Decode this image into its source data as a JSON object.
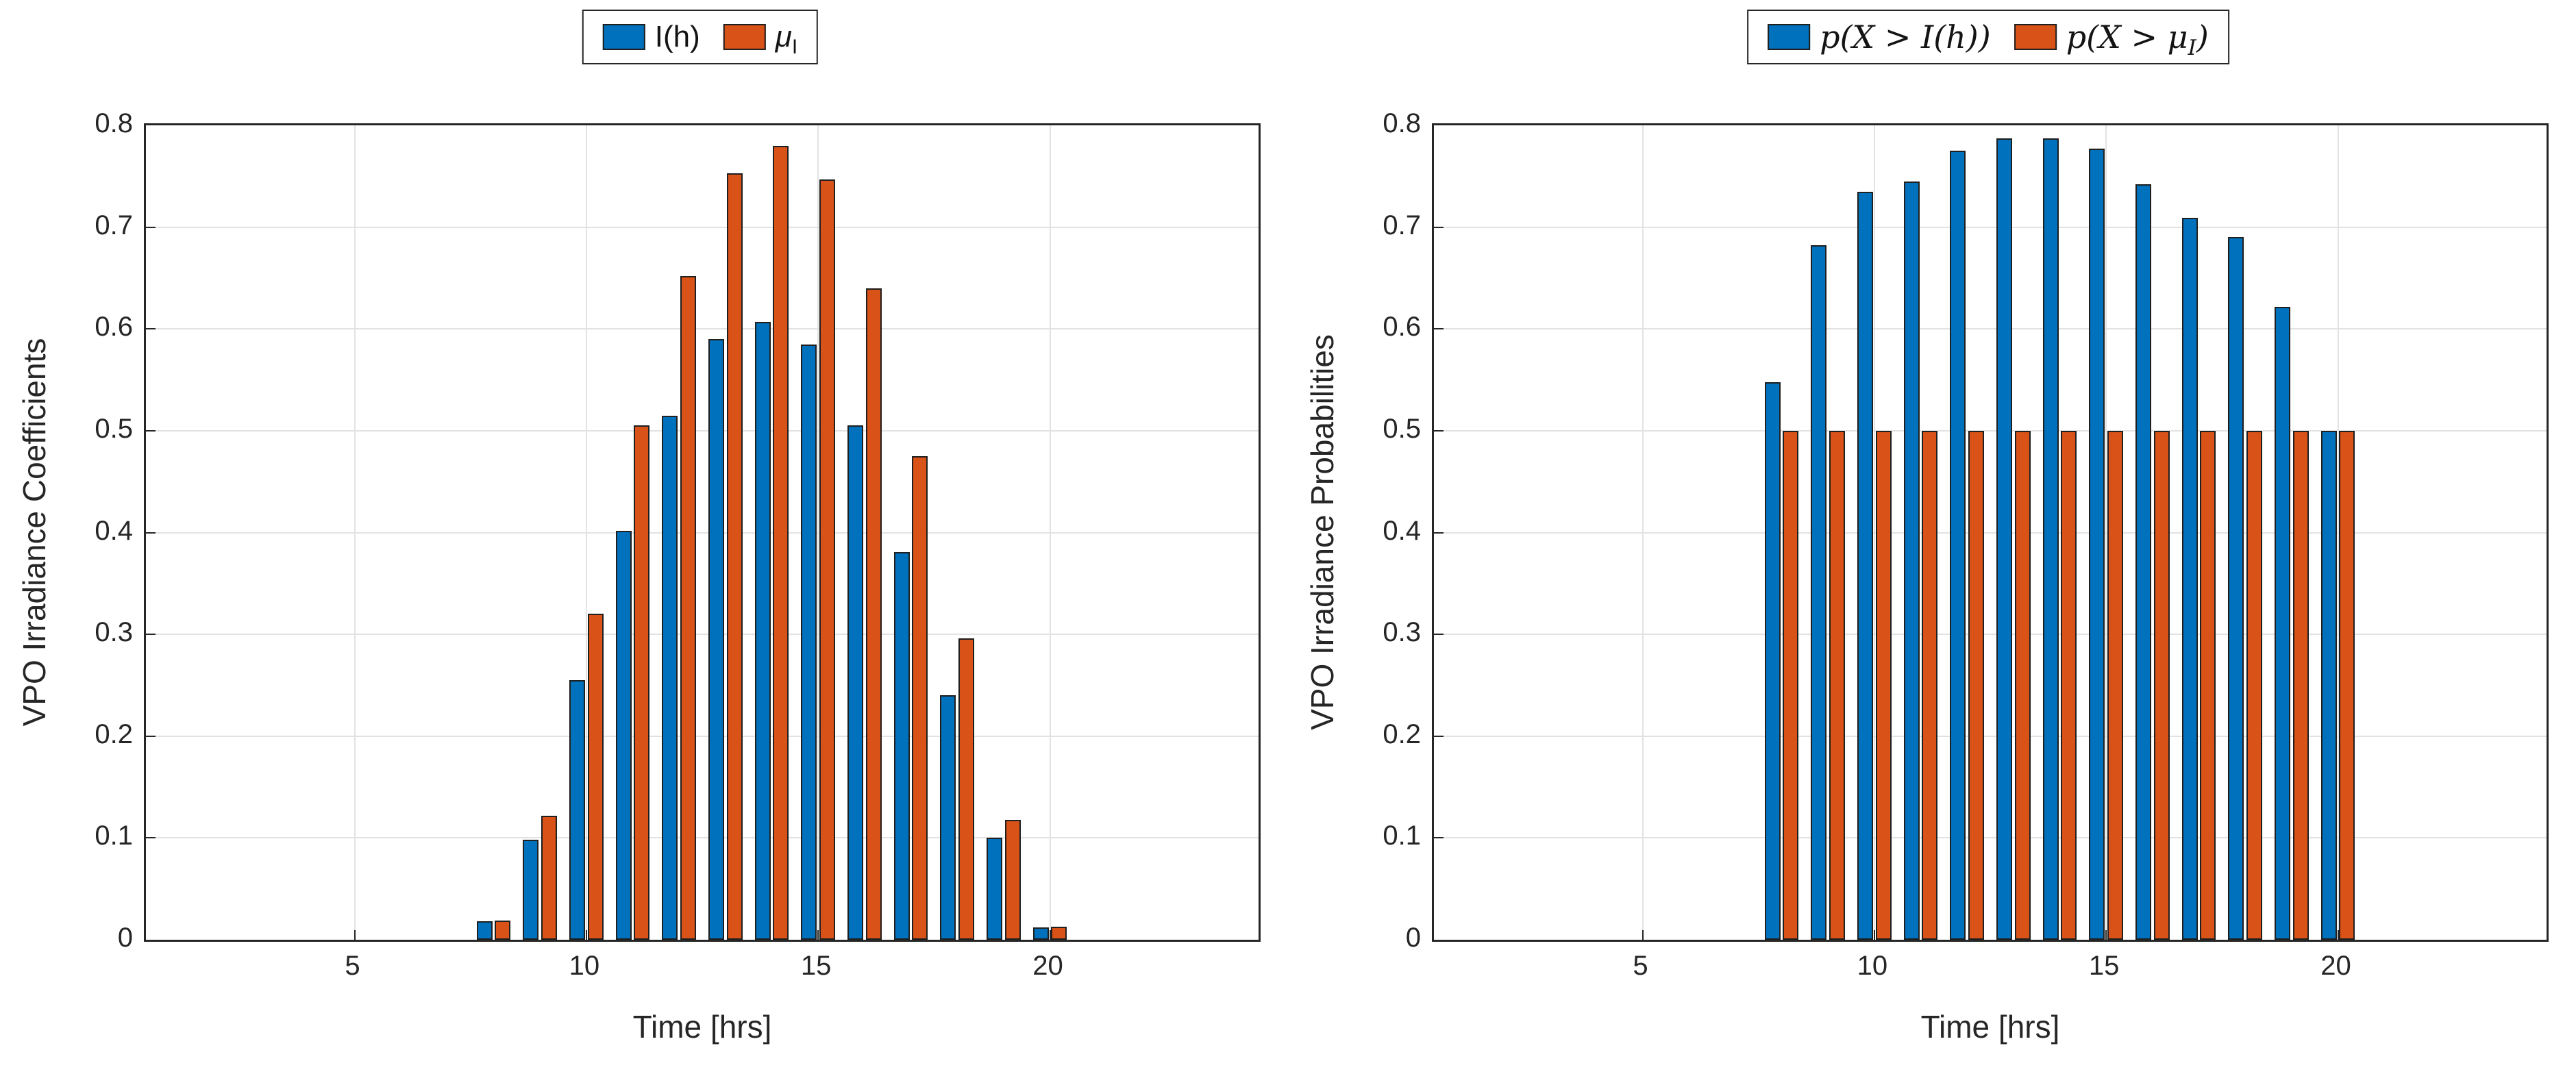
{
  "figure": {
    "background": "#ffffff",
    "text_color": "#262626",
    "grid_color": "#e2e2e2",
    "axis_color": "#262626"
  },
  "chart_data": [
    {
      "type": "bar",
      "title": "",
      "xlabel": "Time [hrs]",
      "ylabel": "VPO Irradiance Coefficients",
      "xlim": [
        0.5,
        24.5
      ],
      "ylim": [
        0,
        0.8
      ],
      "xticks": [
        5,
        10,
        15,
        20
      ],
      "yticks": [
        0,
        0.1,
        0.2,
        0.3,
        0.4,
        0.5,
        0.6,
        0.7,
        0.8
      ],
      "grid": true,
      "legend_position": "top-center",
      "categories": [
        8,
        9,
        10,
        11,
        12,
        13,
        14,
        15,
        16,
        17,
        18,
        19,
        20
      ],
      "series": [
        {
          "name": "I(h)",
          "tex": false,
          "color": "#0072BD",
          "values": [
            0.018,
            0.098,
            0.255,
            0.402,
            0.515,
            0.59,
            0.607,
            0.585,
            0.505,
            0.381,
            0.24,
            0.1,
            0.012
          ]
        },
        {
          "name": "μ_I",
          "tex": false,
          "color": "#D95319",
          "values": [
            0.019,
            0.122,
            0.32,
            0.505,
            0.652,
            0.753,
            0.78,
            0.747,
            0.64,
            0.475,
            0.296,
            0.118,
            0.013
          ]
        }
      ]
    },
    {
      "type": "bar",
      "title": "",
      "xlabel": "Time [hrs]",
      "ylabel": "VPO Irradiance Probabilities",
      "xlim": [
        0.5,
        24.5
      ],
      "ylim": [
        0,
        0.8
      ],
      "xticks": [
        5,
        10,
        15,
        20
      ],
      "yticks": [
        0,
        0.1,
        0.2,
        0.3,
        0.4,
        0.5,
        0.6,
        0.7,
        0.8
      ],
      "grid": true,
      "legend_position": "top-center",
      "categories": [
        8,
        9,
        10,
        11,
        12,
        13,
        14,
        15,
        16,
        17,
        18,
        19,
        20
      ],
      "series": [
        {
          "name": "p(X > I(h))",
          "tex": true,
          "color": "#0072BD",
          "values": [
            0.548,
            0.682,
            0.735,
            0.745,
            0.775,
            0.787,
            0.787,
            0.777,
            0.742,
            0.709,
            0.69,
            0.622,
            0.5
          ]
        },
        {
          "name": "p(X > μ_I)",
          "tex": true,
          "color": "#D95319",
          "values": [
            0.5,
            0.5,
            0.5,
            0.5,
            0.5,
            0.5,
            0.5,
            0.5,
            0.5,
            0.5,
            0.5,
            0.5,
            0.5
          ]
        }
      ]
    }
  ]
}
